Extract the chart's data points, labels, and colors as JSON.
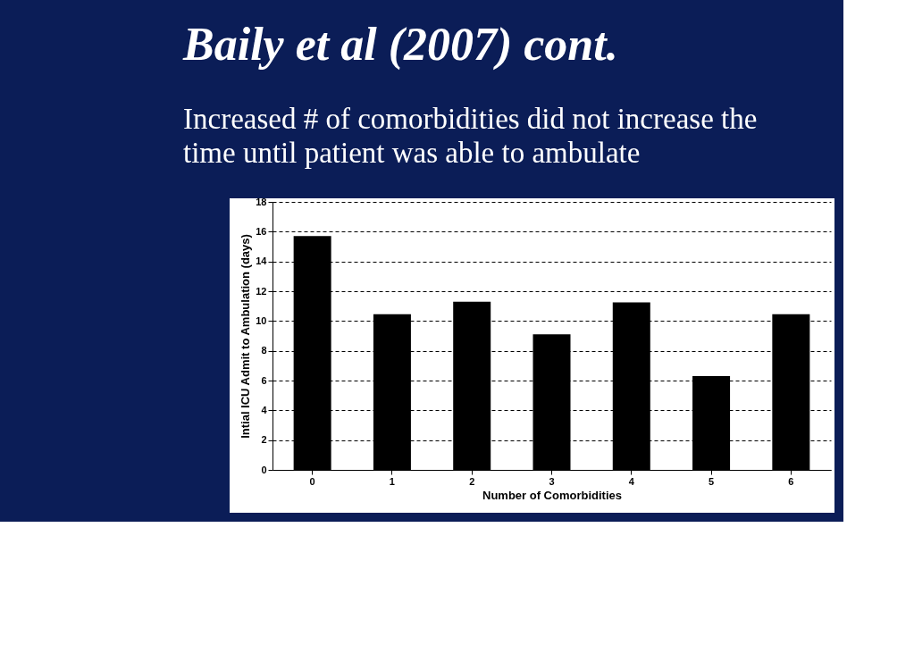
{
  "chart_data": {
    "type": "bar",
    "title": "Baily et al (2007)  cont.",
    "subtitle": "Increased # of comorbidities did not increase the time until patient was able to ambulate",
    "xlabel": "Number of Comorbidities",
    "ylabel": "Intial ICU Admit to Ambulation (days)",
    "categories": [
      "0",
      "1",
      "2",
      "3",
      "4",
      "5",
      "6"
    ],
    "values": [
      15.7,
      10.45,
      11.3,
      9.1,
      11.25,
      6.3,
      10.45
    ],
    "color": "#000000",
    "ylim": [
      0,
      18
    ],
    "yticks": [
      0,
      2,
      4,
      6,
      8,
      10,
      12,
      14,
      16,
      18
    ],
    "grid": "y"
  }
}
